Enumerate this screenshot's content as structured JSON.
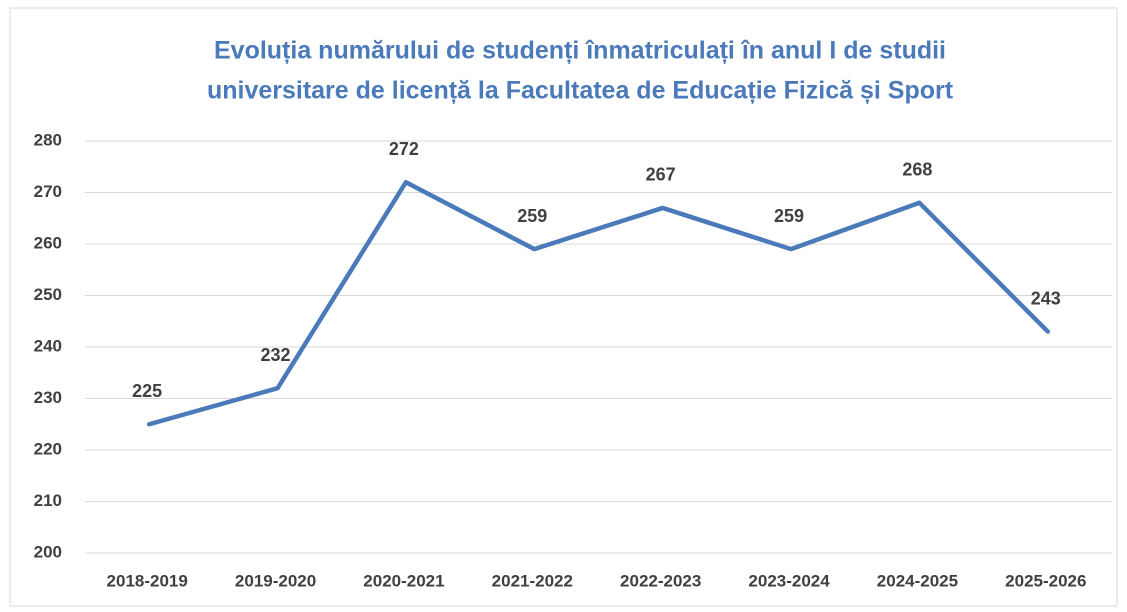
{
  "chart_data": {
    "type": "line",
    "title": [
      "Evoluția numărului de studenți înmatriculați în anul I de studii",
      "universitare de licență la Facultatea de Educație Fizică și Sport"
    ],
    "categories": [
      "2018-2019",
      "2019-2020",
      "2020-2021",
      "2021-2022",
      "2022-2023",
      "2023-2024",
      "2024-2025",
      "2025-2026"
    ],
    "values": [
      225,
      232,
      272,
      259,
      267,
      259,
      268,
      243
    ],
    "color": "#4a7ab9",
    "ylim": [
      200,
      280
    ],
    "yticks": [
      200,
      210,
      220,
      230,
      240,
      250,
      260,
      270,
      280
    ],
    "grid": true,
    "data_labels": true
  }
}
